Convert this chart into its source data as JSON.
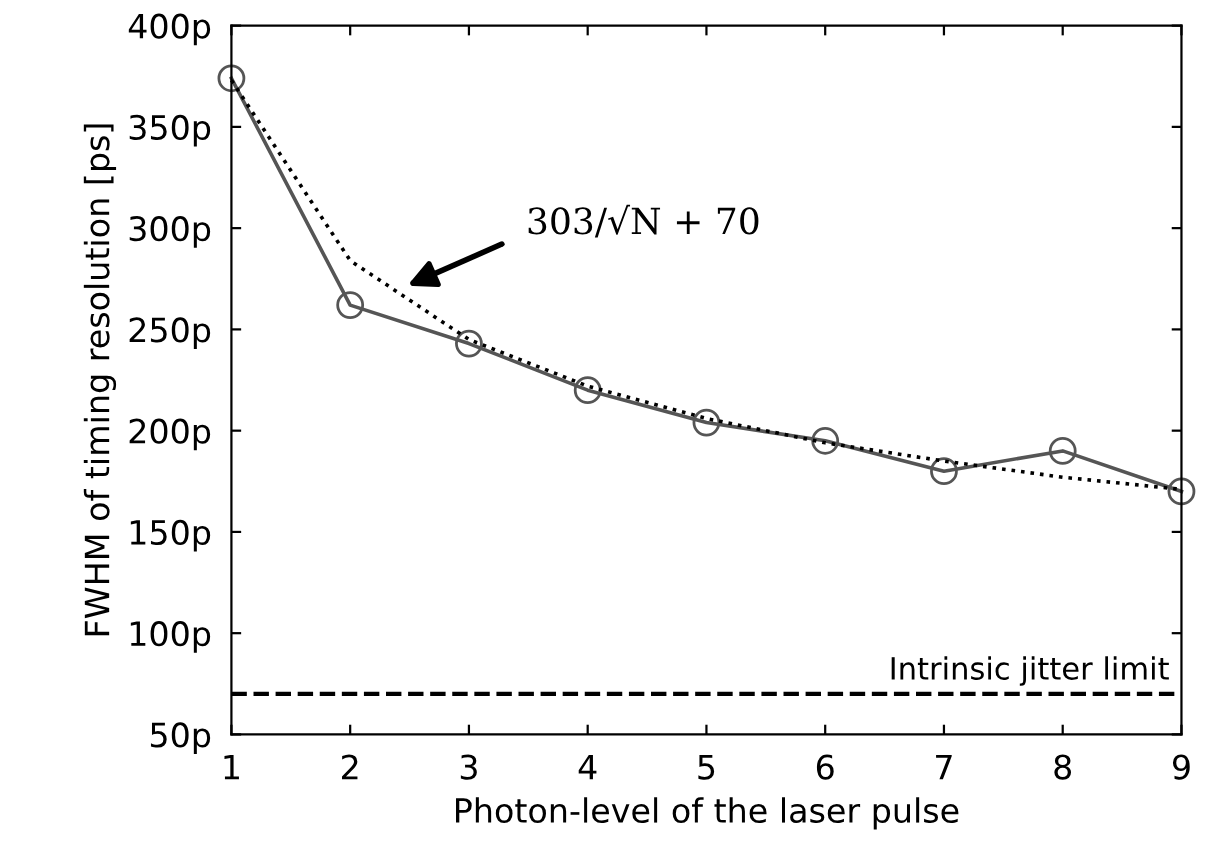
{
  "chart_data": {
    "type": "line",
    "xlabel": "Photon-level of the laser pulse",
    "ylabel": "FWHM of timing resolution [ps]",
    "x": [
      1,
      2,
      3,
      4,
      5,
      6,
      7,
      8,
      9
    ],
    "series": [
      {
        "color": "#555555",
        "values": [
          374,
          262,
          243,
          220,
          204,
          195,
          180,
          190,
          170
        ],
        "marker": "circle",
        "line_style": "solid"
      },
      {
        "color": "#000000",
        "values": [
          373,
          284,
          245,
          222,
          206,
          194,
          185,
          177,
          171
        ],
        "marker": "none",
        "line_style": "dotted"
      }
    ],
    "xlim": [
      1,
      9
    ],
    "xticks": [
      1,
      2,
      3,
      4,
      5,
      6,
      7,
      8,
      9
    ],
    "ylim": [
      50,
      400
    ],
    "yticks": [
      {
        "value": 50,
        "label": "50p"
      },
      {
        "value": 100,
        "label": "100p"
      },
      {
        "value": 150,
        "label": "150p"
      },
      {
        "value": 200,
        "label": "200p"
      },
      {
        "value": 250,
        "label": "250p"
      },
      {
        "value": 300,
        "label": "300p"
      },
      {
        "value": 350,
        "label": "350p"
      },
      {
        "value": 400,
        "label": "400p"
      }
    ],
    "ref_lines": [
      {
        "axis": "y",
        "value": 70,
        "label": "Intrinsic jitter limit",
        "color": "#000000",
        "line_style": "dashed"
      }
    ],
    "annotations": [
      "303/√N + 70"
    ],
    "grid": false,
    "legend": false
  }
}
